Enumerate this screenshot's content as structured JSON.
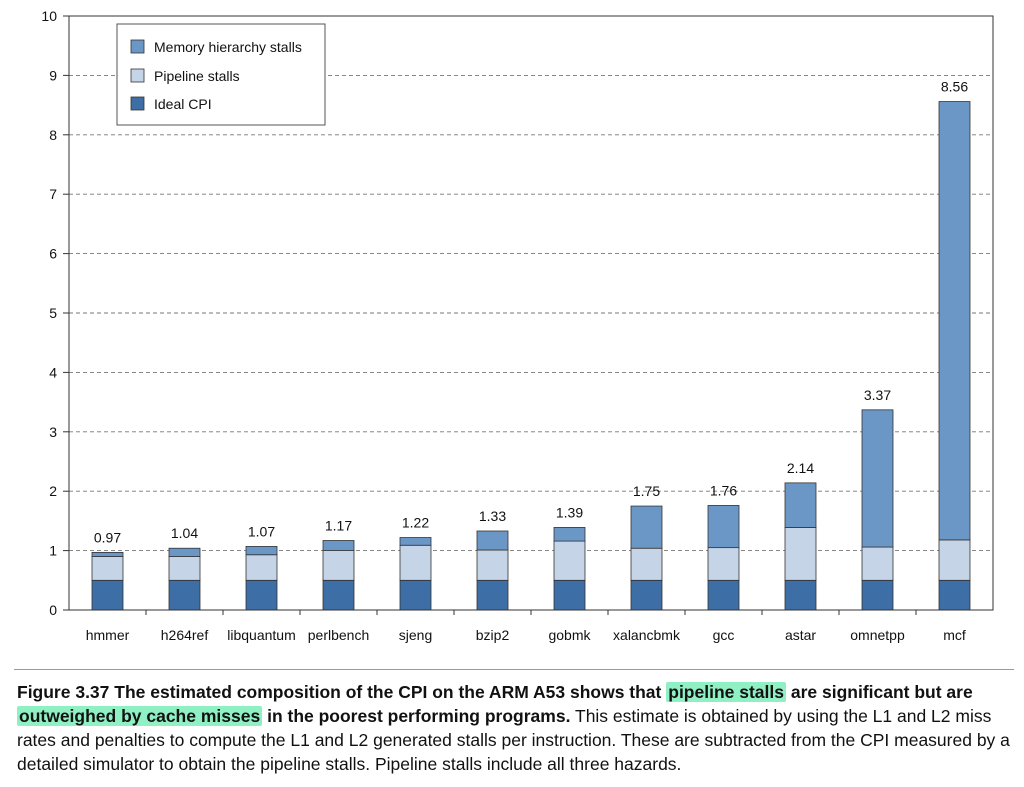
{
  "chart_data": {
    "type": "bar",
    "stacked": true,
    "categories": [
      "hmmer",
      "h264ref",
      "libquantum",
      "perlbench",
      "sjeng",
      "bzip2",
      "gobmk",
      "xalancbmk",
      "gcc",
      "astar",
      "omnetpp",
      "mcf"
    ],
    "series": [
      {
        "name": "Ideal CPI",
        "color": "#3d6fa6",
        "values": [
          0.5,
          0.5,
          0.5,
          0.5,
          0.5,
          0.5,
          0.5,
          0.5,
          0.5,
          0.5,
          0.5,
          0.5
        ]
      },
      {
        "name": "Pipeline stalls",
        "color": "#c5d4e6",
        "values": [
          0.4,
          0.4,
          0.43,
          0.5,
          0.59,
          0.51,
          0.66,
          0.54,
          0.55,
          0.89,
          0.56,
          0.68
        ]
      },
      {
        "name": "Memory hierarchy stalls",
        "color": "#6b97c6",
        "values": [
          0.07,
          0.14,
          0.14,
          0.17,
          0.13,
          0.32,
          0.23,
          0.71,
          0.71,
          0.75,
          2.31,
          7.38
        ]
      }
    ],
    "totals": [
      "0.97",
      "1.04",
      "1.07",
      "1.17",
      "1.22",
      "1.33",
      "1.39",
      "1.75",
      "1.76",
      "2.14",
      "3.37",
      "8.56"
    ],
    "ylim": [
      0,
      10
    ],
    "yticks": [
      "0",
      "1",
      "2",
      "3",
      "4",
      "5",
      "6",
      "7",
      "8",
      "9",
      "10"
    ],
    "grid": "horizontal dashed",
    "legend": {
      "placement": "top-left",
      "items": [
        "Memory hierarchy stalls",
        "Pipeline stalls",
        "Ideal CPI"
      ]
    },
    "title": "",
    "xlabel": "",
    "ylabel": ""
  },
  "caption": {
    "label": "Figure 3.37",
    "bold_part1": "The estimated composition of the CPI on the ARM A53 shows that",
    "highlight1": "pipeline stalls",
    "bold_part2": "are significant but are",
    "highlight2": "outweighed by cache misses",
    "bold_part3": "in the poorest performing programs.",
    "regular": "This estimate is obtained by using the L1 and L2 miss rates and penalties to compute the L1 and L2 generated stalls per instruction. These are subtracted from the CPI measured by a detailed simulator to obtain the pipeline stalls. Pipeline stalls include all three hazards."
  }
}
